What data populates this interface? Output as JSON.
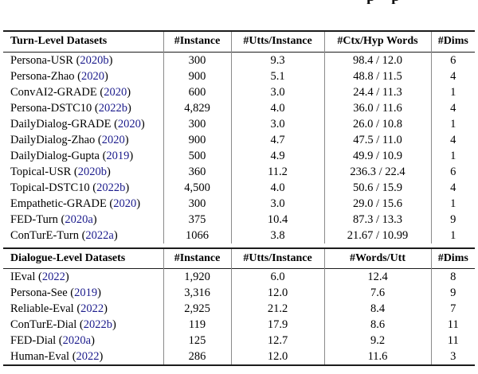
{
  "page": {
    "background": "#ffffff",
    "top_fragment": "pp"
  },
  "table": {
    "citation_color": "#1b1b8c",
    "rule_color": "#1c1c1c",
    "divider_color": "#8a8a8a",
    "sections": [
      {
        "columns": [
          "Turn-Level Datasets",
          "#Instance",
          "#Utts/Instance",
          "#Ctx/Hyp Words",
          "#Dims"
        ],
        "rows": [
          {
            "name": "Persona-USR",
            "cite": "2020b",
            "values": [
              "300",
              "9.3",
              "98.4 / 12.0",
              "6"
            ]
          },
          {
            "name": "Persona-Zhao",
            "cite": "2020",
            "values": [
              "900",
              "5.1",
              "48.8 / 11.5",
              "4"
            ]
          },
          {
            "name": "ConvAI2-GRADE",
            "cite": "2020",
            "values": [
              "600",
              "3.0",
              "24.4 / 11.3",
              "1"
            ]
          },
          {
            "name": "Persona-DSTC10",
            "cite": "2022b",
            "values": [
              "4,829",
              "4.0",
              "36.0 / 11.6",
              "4"
            ]
          },
          {
            "name": "DailyDialog-GRADE",
            "cite": "2020",
            "values": [
              "300",
              "3.0",
              "26.0 / 10.8",
              "1"
            ]
          },
          {
            "name": "DailyDialog-Zhao",
            "cite": "2020",
            "values": [
              "900",
              "4.7",
              "47.5 / 11.0",
              "4"
            ]
          },
          {
            "name": "DailyDialog-Gupta",
            "cite": "2019",
            "values": [
              "500",
              "4.9",
              "49.9 / 10.9",
              "1"
            ]
          },
          {
            "name": "Topical-USR",
            "cite": "2020b",
            "values": [
              "360",
              "11.2",
              "236.3 / 22.4",
              "6"
            ]
          },
          {
            "name": "Topical-DSTC10",
            "cite": "2022b",
            "values": [
              "4,500",
              "4.0",
              "50.6 / 15.9",
              "4"
            ]
          },
          {
            "name": "Empathetic-GRADE",
            "cite": "2020",
            "values": [
              "300",
              "3.0",
              "29.0 / 15.6",
              "1"
            ]
          },
          {
            "name": "FED-Turn",
            "cite": "2020a",
            "values": [
              "375",
              "10.4",
              "87.3 / 13.3",
              "9"
            ]
          },
          {
            "name": "ConTurE-Turn",
            "cite": "2022a",
            "values": [
              "1066",
              "3.8",
              "21.67 / 10.99",
              "1"
            ]
          }
        ]
      },
      {
        "columns": [
          "Dialogue-Level Datasets",
          "#Instance",
          "#Utts/Instance",
          "#Words/Utt",
          "#Dims"
        ],
        "rows": [
          {
            "name": "IEval",
            "cite": "2022",
            "values": [
              "1,920",
              "6.0",
              "12.4",
              "8"
            ]
          },
          {
            "name": "Persona-See",
            "cite": "2019",
            "values": [
              "3,316",
              "12.0",
              "7.6",
              "9"
            ]
          },
          {
            "name": "Reliable-Eval",
            "cite": "2022",
            "values": [
              "2,925",
              "21.2",
              "8.4",
              "7"
            ]
          },
          {
            "name": "ConTurE-Dial",
            "cite": "2022b",
            "values": [
              "119",
              "17.9",
              "8.6",
              "11"
            ]
          },
          {
            "name": "FED-Dial",
            "cite": "2020a",
            "values": [
              "125",
              "12.7",
              "9.2",
              "11"
            ]
          },
          {
            "name": "Human-Eval",
            "cite": "2022",
            "values": [
              "286",
              "12.0",
              "11.6",
              "3"
            ]
          }
        ]
      }
    ]
  }
}
